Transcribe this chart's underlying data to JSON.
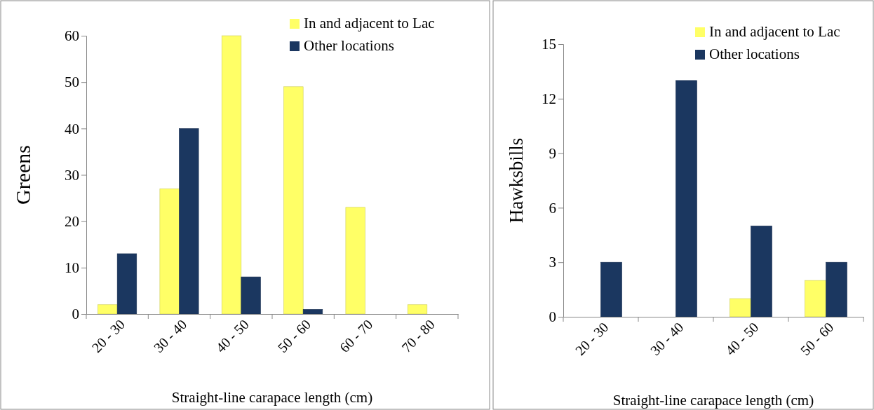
{
  "chart_data": [
    {
      "type": "bar",
      "ylabel": "Greens",
      "xlabel": "Straight-line carapace length (cm)",
      "categories": [
        "20 - 30",
        "30 - 40",
        "40 - 50",
        "50 - 60",
        "60 - 70",
        "70 - 80"
      ],
      "series": [
        {
          "name": "In and adjacent to Lac",
          "color": "#ffff66",
          "values": [
            2,
            27,
            60,
            49,
            23,
            2
          ]
        },
        {
          "name": "Other locations",
          "color": "#1b3760",
          "values": [
            13,
            40,
            8,
            1,
            0,
            0
          ]
        }
      ],
      "ylim": [
        0,
        60
      ],
      "yticks": [
        0,
        10,
        20,
        30,
        40,
        50,
        60
      ],
      "grid": false,
      "legend": "top right"
    },
    {
      "type": "bar",
      "ylabel": "Hawksbills",
      "xlabel": "Straight-line carapace length (cm)",
      "categories": [
        "20 - 30",
        "30 - 40",
        "40 - 50",
        "50 - 60"
      ],
      "series": [
        {
          "name": "In and adjacent to Lac",
          "color": "#ffff66",
          "values": [
            0,
            0,
            1,
            2
          ]
        },
        {
          "name": "Other locations",
          "color": "#1b3760",
          "values": [
            3,
            13,
            5,
            3
          ]
        }
      ],
      "ylim": [
        0,
        15
      ],
      "yticks": [
        0,
        3,
        6,
        9,
        12,
        15
      ],
      "grid": false,
      "legend": "top right"
    }
  ]
}
